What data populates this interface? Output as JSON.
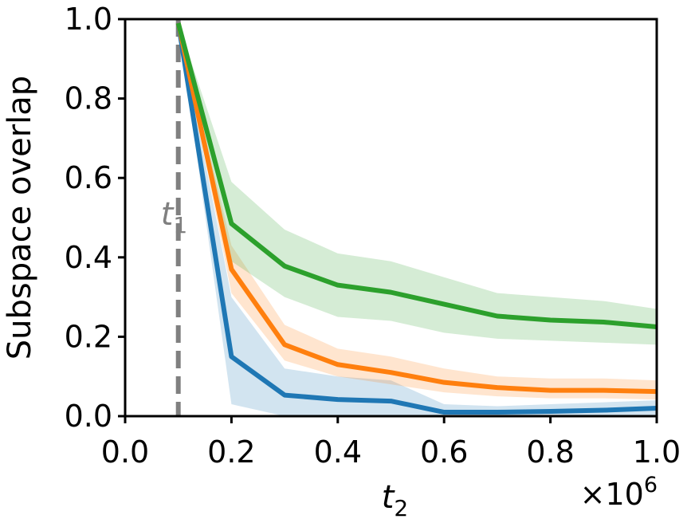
{
  "chart_data": {
    "type": "line",
    "xlabel": "t",
    "xlabel_sub": "2",
    "ylabel": "Subspace overlap",
    "x_multiplier": "×10",
    "x_multiplier_exp": "6",
    "xlim": [
      0.0,
      1.0
    ],
    "ylim": [
      0.0,
      1.0
    ],
    "x_ticks": [
      "0.0",
      "0.2",
      "0.4",
      "0.6",
      "0.8",
      "1.0"
    ],
    "y_ticks": [
      "0.0",
      "0.2",
      "0.4",
      "0.6",
      "0.8",
      "1.0"
    ],
    "grid": false,
    "vline": {
      "x": 0.1,
      "label": "t",
      "label_sub": "1",
      "color": "#808080"
    },
    "x": [
      0.1,
      0.2,
      0.3,
      0.4,
      0.5,
      0.6,
      0.7,
      0.8,
      0.9,
      1.0
    ],
    "series": [
      {
        "color": "#1f77b4",
        "values": [
          0.99,
          0.15,
          0.053,
          0.042,
          0.038,
          0.01,
          0.01,
          0.012,
          0.015,
          0.02
        ],
        "lower": [
          0.99,
          0.03,
          0.0,
          0.0,
          0.0,
          0.0,
          0.0,
          0.0,
          0.0,
          0.0
        ],
        "upper": [
          0.99,
          0.3,
          0.12,
          0.1,
          0.09,
          0.03,
          0.025,
          0.03,
          0.035,
          0.04
        ]
      },
      {
        "color": "#ff7f0e",
        "values": [
          0.99,
          0.37,
          0.18,
          0.13,
          0.11,
          0.085,
          0.072,
          0.065,
          0.065,
          0.062
        ],
        "lower": [
          0.99,
          0.31,
          0.14,
          0.1,
          0.08,
          0.06,
          0.05,
          0.045,
          0.045,
          0.042
        ],
        "upper": [
          0.99,
          0.43,
          0.23,
          0.17,
          0.15,
          0.12,
          0.1,
          0.095,
          0.095,
          0.09
        ]
      },
      {
        "color": "#2ca02c",
        "values": [
          0.99,
          0.485,
          0.378,
          0.33,
          0.312,
          0.282,
          0.252,
          0.242,
          0.237,
          0.225
        ],
        "lower": [
          0.99,
          0.39,
          0.3,
          0.25,
          0.24,
          0.21,
          0.195,
          0.19,
          0.185,
          0.18
        ],
        "upper": [
          0.99,
          0.59,
          0.47,
          0.41,
          0.39,
          0.35,
          0.31,
          0.3,
          0.29,
          0.27
        ]
      }
    ]
  }
}
